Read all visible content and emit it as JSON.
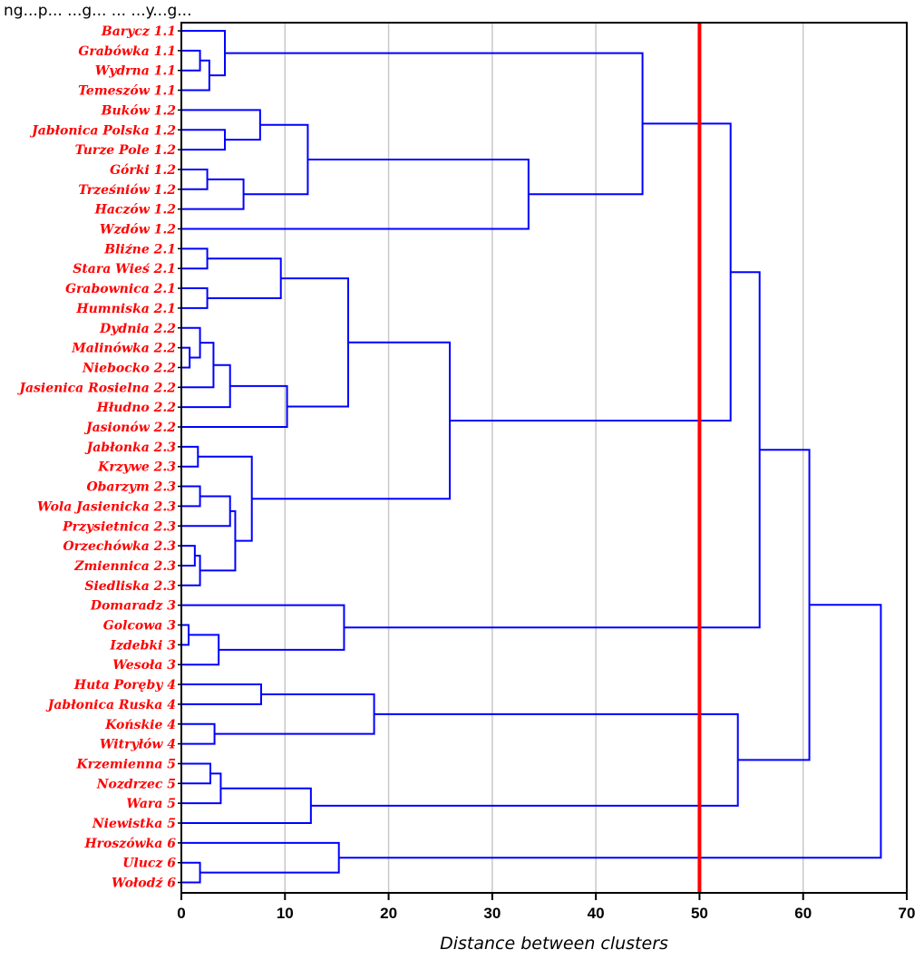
{
  "top_caption": "ng...p... ...g... ... ...y...g...",
  "chart_data": {
    "type": "dendrogram",
    "orientation": "horizontal",
    "xlabel": "Distance between clusters",
    "xlim": [
      0,
      70
    ],
    "xticks": [
      0,
      10,
      20,
      30,
      40,
      50,
      60,
      70
    ],
    "grid": true,
    "cut_line": {
      "x": 50,
      "color": "#ff0000"
    },
    "link_color": "#0000ff",
    "label_color": "#ff0000",
    "leaves": [
      "Barycz 1.1",
      "Grabówka 1.1",
      "Wydrna 1.1",
      "Temeszów 1.1",
      "Buków 1.2",
      "Jabłonica Polska 1.2",
      "Turze Pole 1.2",
      "Górki 1.2",
      "Trześniów 1.2",
      "Haczów 1.2",
      "Wzdów 1.2",
      "Bliźne 2.1",
      "Stara Wieś 2.1",
      "Grabownica 2.1",
      "Humniska 2.1",
      "Dydnia 2.2",
      "Malinówka 2.2",
      "Niebocko 2.2",
      "Jasienica Rosielna 2.2",
      "Hłudno 2.2",
      "Jasionów 2.2",
      "Jabłonka 2.3",
      "Krzywe 2.3",
      "Obarzym 2.3",
      "Wola Jasienicka 2.3",
      "Przysietnica 2.3",
      "Orzechówka 2.3",
      "Zmiennica 2.3",
      "Siedliska 2.3",
      "Domaradz 3",
      "Golcowa 3",
      "Izdebki 3",
      "Wesoła 3",
      "Huta Poręby 4",
      "Jabłonica Ruska 4",
      "Końskie 4",
      "Witryłów 4",
      "Krzemienna 5",
      "Nozdrzec 5",
      "Wara 5",
      "Niewistka 5",
      "Hroszówka 6",
      "Ulucz 6",
      "Wołodź 6"
    ],
    "merges": [
      {
        "a": "L1",
        "b": "L2",
        "h": 1.8,
        "id": "N1"
      },
      {
        "a": "N1",
        "b": "L3",
        "h": 2.7,
        "id": "N2"
      },
      {
        "a": "L0",
        "b": "N2",
        "h": 4.2,
        "id": "N3"
      },
      {
        "a": "L5",
        "b": "L6",
        "h": 4.2,
        "id": "N4"
      },
      {
        "a": "L4",
        "b": "N4",
        "h": 7.6,
        "id": "N5"
      },
      {
        "a": "L7",
        "b": "L8",
        "h": 2.5,
        "id": "N6"
      },
      {
        "a": "N6",
        "b": "L9",
        "h": 6.0,
        "id": "N7"
      },
      {
        "a": "N5",
        "b": "N7",
        "h": 12.2,
        "id": "N8"
      },
      {
        "a": "N8",
        "b": "L10",
        "h": 33.5,
        "id": "N9"
      },
      {
        "a": "N3",
        "b": "N9",
        "h": 44.5,
        "id": "N10"
      },
      {
        "a": "L11",
        "b": "L12",
        "h": 2.5,
        "id": "N11"
      },
      {
        "a": "L13",
        "b": "L14",
        "h": 2.5,
        "id": "N12"
      },
      {
        "a": "N11",
        "b": "N12",
        "h": 9.6,
        "id": "N13"
      },
      {
        "a": "L16",
        "b": "L17",
        "h": 0.8,
        "id": "N14"
      },
      {
        "a": "L15",
        "b": "N14",
        "h": 1.8,
        "id": "N15"
      },
      {
        "a": "N15",
        "b": "L18",
        "h": 3.1,
        "id": "N16"
      },
      {
        "a": "N16",
        "b": "L19",
        "h": 4.7,
        "id": "N17"
      },
      {
        "a": "N17",
        "b": "L20",
        "h": 10.2,
        "id": "N18"
      },
      {
        "a": "N13",
        "b": "N18",
        "h": 16.1,
        "id": "N19"
      },
      {
        "a": "L21",
        "b": "L22",
        "h": 1.6,
        "id": "N20"
      },
      {
        "a": "L23",
        "b": "L24",
        "h": 1.8,
        "id": "N21"
      },
      {
        "a": "N21",
        "b": "L25",
        "h": 4.7,
        "id": "N22"
      },
      {
        "a": "L26",
        "b": "L27",
        "h": 1.3,
        "id": "N23"
      },
      {
        "a": "N23",
        "b": "L28",
        "h": 1.8,
        "id": "N24"
      },
      {
        "a": "N22",
        "b": "N24",
        "h": 5.2,
        "id": "N25"
      },
      {
        "a": "N20",
        "b": "N25",
        "h": 6.8,
        "id": "N26"
      },
      {
        "a": "N19",
        "b": "N26",
        "h": 25.9,
        "id": "N27"
      },
      {
        "a": "N10",
        "b": "N27",
        "h": 53.0,
        "id": "N28"
      },
      {
        "a": "L30",
        "b": "L31",
        "h": 0.7,
        "id": "N29"
      },
      {
        "a": "N29",
        "b": "L32",
        "h": 3.6,
        "id": "N30"
      },
      {
        "a": "L29",
        "b": "N30",
        "h": 15.7,
        "id": "N31"
      },
      {
        "a": "N28",
        "b": "N31",
        "h": 55.8,
        "id": "N32"
      },
      {
        "a": "L33",
        "b": "L34",
        "h": 7.7,
        "id": "N33"
      },
      {
        "a": "L35",
        "b": "L36",
        "h": 3.2,
        "id": "N34"
      },
      {
        "a": "N33",
        "b": "N34",
        "h": 18.6,
        "id": "N35"
      },
      {
        "a": "L37",
        "b": "L38",
        "h": 2.8,
        "id": "N36"
      },
      {
        "a": "N36",
        "b": "L39",
        "h": 3.8,
        "id": "N37"
      },
      {
        "a": "N37",
        "b": "L40",
        "h": 12.5,
        "id": "N38"
      },
      {
        "a": "N35",
        "b": "N38",
        "h": 53.7,
        "id": "N39"
      },
      {
        "a": "N32",
        "b": "N39",
        "h": 60.6,
        "id": "N40"
      },
      {
        "a": "L42",
        "b": "L43",
        "h": 1.8,
        "id": "N41"
      },
      {
        "a": "L41",
        "b": "N41",
        "h": 15.2,
        "id": "N42"
      },
      {
        "a": "N40",
        "b": "N42",
        "h": 67.5,
        "id": "N43"
      }
    ]
  }
}
